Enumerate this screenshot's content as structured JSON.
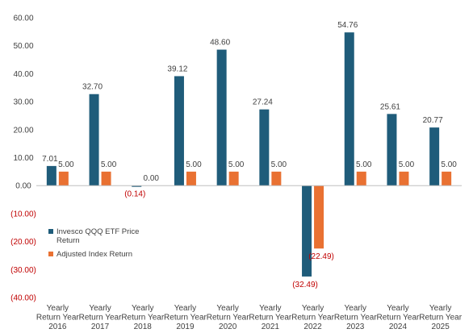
{
  "chart_data": {
    "type": "bar",
    "categories": [
      [
        "Yearly",
        "Return Year",
        "2016"
      ],
      [
        "Yearly",
        "Return Year",
        "2017"
      ],
      [
        "Yearly",
        "Return Year",
        "2018"
      ],
      [
        "Yearly",
        "Return Year",
        "2019"
      ],
      [
        "Yearly",
        "Return Year",
        "2020"
      ],
      [
        "Yearly",
        "Return Year",
        "2021"
      ],
      [
        "Yearly",
        "Return Year",
        "2022"
      ],
      [
        "Yearly",
        "Return Year",
        "2023"
      ],
      [
        "Yearly",
        "Return Year",
        "2024"
      ],
      [
        "Yearly",
        "Return Year",
        "2025"
      ]
    ],
    "series": [
      {
        "name": "Invesco QQQ ETF Price Return",
        "legend_lines": [
          "Invesco QQQ ETF Price",
          "Return"
        ],
        "color": "#1F5C7A",
        "values": [
          7.01,
          32.7,
          -0.14,
          39.12,
          48.6,
          27.24,
          -32.49,
          54.76,
          25.61,
          20.77
        ],
        "labels": [
          "7.01",
          "32.70",
          "(0.14)",
          "39.12",
          "48.60",
          "27.24",
          "(32.49)",
          "54.76",
          "25.61",
          "20.77"
        ]
      },
      {
        "name": "Adjusted Index Return",
        "legend_lines": [
          "Adjusted Index Return"
        ],
        "color": "#E97132",
        "values": [
          5.0,
          5.0,
          0.0,
          5.0,
          5.0,
          5.0,
          -22.49,
          5.0,
          5.0,
          5.0
        ],
        "labels": [
          "5.00",
          "5.00",
          "0.00",
          "5.00",
          "5.00",
          "5.00",
          "(22.49)",
          "5.00",
          "5.00",
          "5.00"
        ]
      }
    ],
    "y_ticks": [
      {
        "value": 60,
        "label": "60.00"
      },
      {
        "value": 50,
        "label": "50.00"
      },
      {
        "value": 40,
        "label": "40.00"
      },
      {
        "value": 30,
        "label": "30.00"
      },
      {
        "value": 20,
        "label": "20.00"
      },
      {
        "value": 10,
        "label": "10.00"
      },
      {
        "value": 0,
        "label": "0.00"
      },
      {
        "value": -10,
        "label": "(10.00)"
      },
      {
        "value": -20,
        "label": "(20.00)"
      },
      {
        "value": -30,
        "label": "(30.00)"
      },
      {
        "value": -40,
        "label": "(40.00)"
      }
    ],
    "ylim": [
      -40,
      60
    ],
    "grid": false,
    "legend_position": "left-center",
    "negative_label_color": "#C00000",
    "positive_label_color": "#404040",
    "axis_color": "#BFBFBF"
  }
}
